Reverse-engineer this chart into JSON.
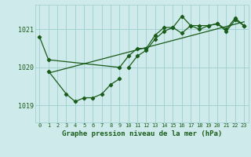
{
  "title": "Graphe pression niveau de la mer (hPa)",
  "background_color": "#ceeaea",
  "grid_color": "#9ecece",
  "line_color": "#1a5c1a",
  "xlim": [
    -0.5,
    23.5
  ],
  "ylim": [
    1018.55,
    1021.65
  ],
  "yticks": [
    1019,
    1020,
    1021
  ],
  "xticks": [
    0,
    1,
    2,
    3,
    4,
    5,
    6,
    7,
    8,
    9,
    10,
    11,
    12,
    13,
    14,
    15,
    16,
    17,
    18,
    19,
    20,
    21,
    22,
    23
  ],
  "series1_x": [
    0,
    1,
    9,
    10,
    11,
    12,
    13,
    14,
    15,
    16,
    17,
    18,
    19,
    20,
    21,
    22,
    23
  ],
  "series1_y": [
    1020.8,
    1020.2,
    1020.0,
    1020.3,
    1020.5,
    1020.5,
    1020.85,
    1021.05,
    1021.05,
    1020.9,
    1021.1,
    1021.1,
    1021.1,
    1021.15,
    1021.0,
    1021.3,
    1021.1
  ],
  "series2_x": [
    1,
    3,
    4,
    5,
    6,
    7,
    8,
    9
  ],
  "series2_y": [
    1019.9,
    1019.3,
    1019.1,
    1019.2,
    1019.2,
    1019.3,
    1019.55,
    1019.7
  ],
  "series3_x": [
    10,
    11,
    12,
    13,
    14,
    15,
    16,
    17,
    18,
    19,
    20,
    21,
    22,
    23
  ],
  "series3_y": [
    1020.0,
    1020.3,
    1020.45,
    1020.75,
    1020.95,
    1021.05,
    1021.35,
    1021.1,
    1021.0,
    1021.1,
    1021.15,
    1020.95,
    1021.25,
    1021.1
  ],
  "trend_x": [
    1,
    23
  ],
  "trend_y": [
    1019.85,
    1021.2
  ]
}
